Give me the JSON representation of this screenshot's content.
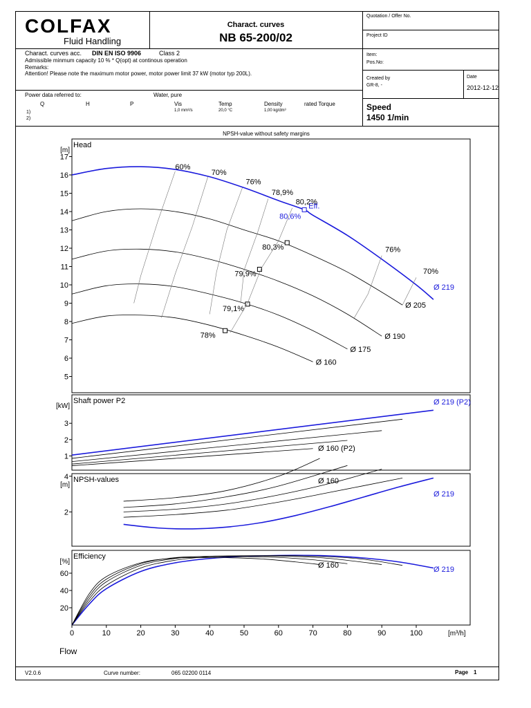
{
  "header": {
    "logo_text": "COLFAX",
    "logo_sub": "Fluid Handling",
    "doc_title": "Charact. curves",
    "model": "NB 65-200/02",
    "quotation_label": "Quotation / Offer No.",
    "project_label": "Project ID",
    "item_label": "Item:",
    "pos_label": "Pos.No:",
    "created_by_label": "Created by",
    "created_by_value": "GR-8, -",
    "date_label": "Date",
    "date_value": "2012-12-12",
    "speed_label": "Speed",
    "speed_value": "1450 1/min"
  },
  "info": {
    "acc_prefix": "Charact. curves acc.",
    "standard": "DIN EN ISO 9906",
    "class": "Class 2",
    "min_capacity": "Admissible minmum capacity  10  %  *  Q(opt) at continous operation",
    "remarks": "Remarks:",
    "attention": "Attention! Please note the maximum motor power, motor power limit   37 kW (motor typ 200L).",
    "power_label": "Power data referred to:",
    "medium": "Water, pure",
    "col_q": "Q",
    "col_h": "H",
    "col_p": "P",
    "col_vis": "Vis",
    "col_temp": "Temp",
    "col_density": "Density",
    "col_torque": "rated Torque",
    "vis_value": "1,0 mm²/s",
    "temp_value": "20,0 °C",
    "density_value": "1,00 kg/dm³",
    "row1": "1)",
    "row2": "2)"
  },
  "footer": {
    "version": "V2.0.6",
    "curve_label": "Curve number:",
    "curve_number": "065 02200 0114",
    "page_label": "Page",
    "page_number": "1"
  },
  "colors": {
    "blue": "#1a1adc",
    "grid": "#000000",
    "curve": "#000000"
  },
  "chart_data": [
    {
      "type": "line",
      "title": "NPSH-value without safety margins",
      "ylabel": "Head",
      "yunit": "[m]",
      "xlim": [
        0,
        115
      ],
      "ylim": [
        4,
        17.5
      ],
      "yticks": [
        5,
        6,
        7,
        8,
        9,
        10,
        11,
        12,
        13,
        14,
        15,
        16,
        17
      ],
      "series": [
        {
          "name": "Ø 219",
          "highlight": true,
          "x": [
            0,
            10,
            20,
            30,
            40,
            50,
            60,
            67.5,
            70,
            80,
            90,
            100,
            105
          ],
          "y": [
            16.0,
            16.35,
            16.45,
            16.3,
            15.9,
            15.3,
            14.6,
            14.1,
            13.8,
            12.7,
            11.4,
            10.0,
            9.2
          ]
        },
        {
          "name": "Ø 205",
          "x": [
            0,
            10,
            20,
            30,
            40,
            50,
            60,
            70,
            80,
            90,
            96
          ],
          "y": [
            13.5,
            14.0,
            14.15,
            14.0,
            13.6,
            13.0,
            12.4,
            11.6,
            10.7,
            9.6,
            8.9
          ]
        },
        {
          "name": "Ø 190",
          "x": [
            0,
            10,
            20,
            30,
            40,
            50,
            60,
            70,
            80,
            90
          ],
          "y": [
            11.4,
            11.85,
            11.95,
            11.8,
            11.4,
            10.85,
            10.2,
            9.4,
            8.4,
            7.2
          ]
        },
        {
          "name": "Ø 175",
          "x": [
            0,
            10,
            20,
            30,
            40,
            50,
            60,
            70,
            80
          ],
          "y": [
            9.5,
            9.95,
            10.05,
            9.9,
            9.5,
            9.0,
            8.35,
            7.5,
            6.5
          ]
        },
        {
          "name": "Ø 160",
          "x": [
            0,
            10,
            20,
            30,
            40,
            50,
            60,
            70
          ],
          "y": [
            7.9,
            8.3,
            8.35,
            8.2,
            7.8,
            7.25,
            6.6,
            5.8
          ]
        }
      ],
      "duty_points": [
        {
          "label": "Eff.",
          "eff": "80,6%",
          "x": 67.5,
          "y": 14.1
        },
        {
          "eff": "80,3%",
          "x": 62.5,
          "y": 12.3
        },
        {
          "eff": "79,9%",
          "x": 54.5,
          "y": 10.85
        },
        {
          "eff": "79,1%",
          "x": 51,
          "y": 8.95
        },
        {
          "eff": "78%",
          "x": 44.5,
          "y": 7.5
        }
      ],
      "iso_efficiency_labels": [
        {
          "text": "60%",
          "x": 30,
          "y": 16.3
        },
        {
          "text": "70%",
          "x": 40.5,
          "y": 16.0
        },
        {
          "text": "76%",
          "x": 50.5,
          "y": 15.5
        },
        {
          "text": "78,9%",
          "x": 58,
          "y": 14.9
        },
        {
          "text": "80,2%",
          "x": 65,
          "y": 14.4
        },
        {
          "text": "76%",
          "x": 91,
          "y": 11.8
        },
        {
          "text": "70%",
          "x": 102,
          "y": 10.6
        }
      ]
    },
    {
      "type": "line",
      "ylabel": "Shaft power P2",
      "yunit": "[kW]",
      "xlim": [
        0,
        115
      ],
      "ylim": [
        0,
        4
      ],
      "yticks": [
        1,
        2,
        3
      ],
      "series": [
        {
          "name": "Ø 219 (P2)",
          "highlight": true,
          "x": [
            0,
            105
          ],
          "y": [
            1.05,
            3.8
          ]
        },
        {
          "name": "",
          "x": [
            0,
            96
          ],
          "y": [
            0.85,
            3.25
          ]
        },
        {
          "name": "",
          "x": [
            0,
            90
          ],
          "y": [
            0.65,
            2.55
          ]
        },
        {
          "name": "",
          "x": [
            0,
            80
          ],
          "y": [
            0.5,
            1.95
          ]
        },
        {
          "name": "Ø 160 (P2)",
          "x": [
            0,
            70
          ],
          "y": [
            0.4,
            1.45
          ]
        }
      ]
    },
    {
      "type": "line",
      "ylabel": "NPSH-values",
      "yunit": "[m]",
      "xlim": [
        0,
        115
      ],
      "ylim": [
        0,
        5
      ],
      "yticks": [
        2,
        4
      ],
      "series": [
        {
          "name": "Ø 160",
          "x": [
            15,
            30,
            45,
            60,
            72
          ],
          "y": [
            2.6,
            2.8,
            3.2,
            4.0,
            5.0
          ]
        },
        {
          "name": "",
          "x": [
            15,
            30,
            45,
            60,
            80
          ],
          "y": [
            2.25,
            2.45,
            2.85,
            3.45,
            4.6
          ]
        },
        {
          "name": "",
          "x": [
            15,
            30,
            45,
            60,
            75,
            90
          ],
          "y": [
            2.0,
            2.15,
            2.45,
            2.95,
            3.6,
            4.4
          ]
        },
        {
          "name": "",
          "x": [
            15,
            30,
            45,
            60,
            75,
            96
          ],
          "y": [
            1.7,
            1.85,
            2.1,
            2.55,
            3.1,
            3.9
          ]
        },
        {
          "name": "Ø 219",
          "highlight": true,
          "x": [
            15,
            25,
            35,
            45,
            55,
            65,
            75,
            85,
            95,
            105
          ],
          "y": [
            1.3,
            1.1,
            1.05,
            1.15,
            1.4,
            1.8,
            2.3,
            2.85,
            3.4,
            3.9
          ]
        }
      ]
    },
    {
      "type": "line",
      "ylabel": "Efficiency",
      "yunit": "[%]",
      "xlabel": "Flow",
      "xunit": "[m³/h]",
      "xlim": [
        0,
        115
      ],
      "ylim": [
        0,
        85
      ],
      "xticks": [
        0,
        10,
        20,
        30,
        40,
        50,
        60,
        70,
        80,
        90,
        100
      ],
      "yticks": [
        20,
        40,
        60
      ],
      "series": [
        {
          "name": "Ø 219",
          "highlight": true,
          "x": [
            0,
            5,
            10,
            20,
            30,
            40,
            50,
            60,
            67.5,
            75,
            85,
            95,
            105
          ],
          "y": [
            0,
            24,
            42,
            62,
            72,
            77,
            79.5,
            80.5,
            80.6,
            80,
            77.5,
            73,
            66
          ]
        },
        {
          "name": "",
          "x": [
            0,
            5,
            10,
            20,
            30,
            40,
            50,
            62.5,
            75,
            85,
            96
          ],
          "y": [
            0,
            27,
            46,
            66,
            75,
            79,
            80.2,
            80.3,
            79,
            76,
            69
          ]
        },
        {
          "name": "",
          "x": [
            0,
            5,
            10,
            20,
            30,
            40,
            54.5,
            65,
            75,
            90
          ],
          "y": [
            0,
            30,
            50,
            69,
            77,
            79.6,
            79.9,
            79.3,
            77,
            70
          ]
        },
        {
          "name": "",
          "x": [
            0,
            5,
            10,
            20,
            30,
            40,
            51,
            60,
            70,
            80
          ],
          "y": [
            0,
            33,
            53,
            71,
            78,
            79.1,
            79.1,
            78.2,
            75.5,
            71
          ]
        },
        {
          "name": "Ø 160",
          "x": [
            0,
            5,
            10,
            20,
            30,
            40,
            44.5,
            55,
            65,
            72
          ],
          "y": [
            0,
            36,
            56,
            72,
            77.5,
            78,
            78,
            76.5,
            73,
            70
          ]
        }
      ]
    }
  ]
}
